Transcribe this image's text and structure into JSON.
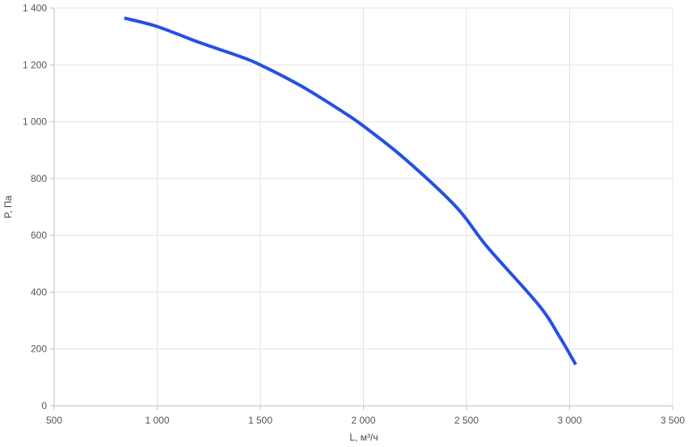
{
  "chart_data": {
    "type": "line",
    "title": "",
    "xlabel": "L, м³/ч",
    "ylabel": "P, Па",
    "xlim": [
      500,
      3500
    ],
    "ylim": [
      0,
      1400
    ],
    "x_ticks": [
      500,
      1000,
      1500,
      2000,
      2500,
      3000,
      3500
    ],
    "x_tick_labels": [
      "500",
      "1 000",
      "1 500",
      "2 000",
      "2 500",
      "3 000",
      "3 500"
    ],
    "y_ticks": [
      0,
      200,
      400,
      600,
      800,
      1000,
      1200,
      1400
    ],
    "y_tick_labels": [
      "0",
      "200",
      "400",
      "600",
      "800",
      "1 000",
      "1 200",
      "1 400"
    ],
    "grid": true,
    "legend": "none",
    "series": [
      {
        "color": "#2550e6",
        "x": [
          840,
          1000,
          1200,
          1400,
          1500,
          1700,
          1900,
          2000,
          2200,
          2450,
          2600,
          2850,
          2950,
          3030
        ],
        "values": [
          1365,
          1335,
          1280,
          1230,
          1200,
          1125,
          1035,
          985,
          870,
          700,
          560,
          355,
          245,
          145
        ]
      }
    ]
  }
}
